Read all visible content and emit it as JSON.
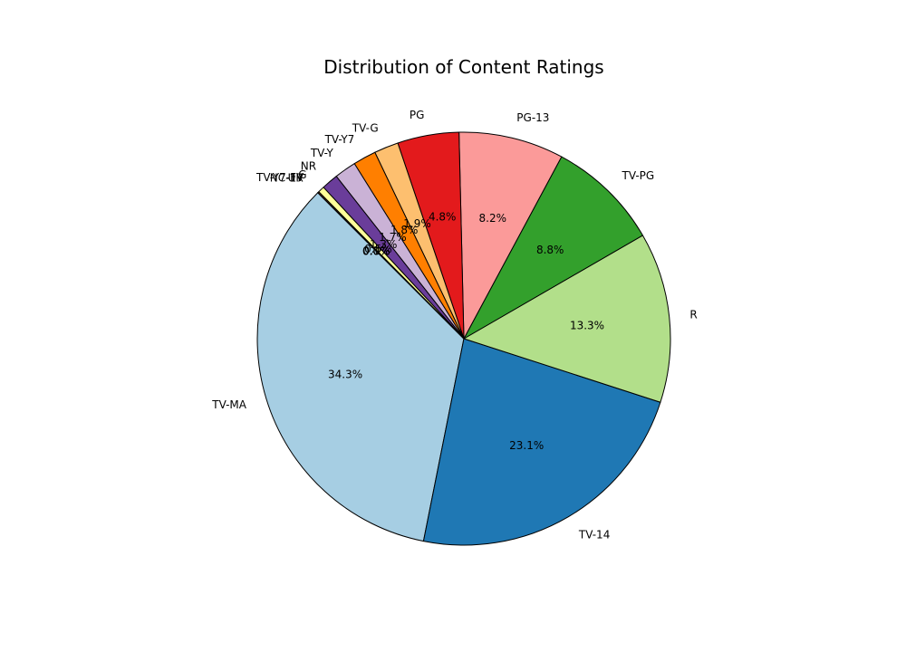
{
  "chart_data": {
    "type": "pie",
    "title": "Distribution of Content Ratings",
    "start_angle_deg": 135,
    "direction": "counterclockwise",
    "edge_color": "#000000",
    "slices": [
      {
        "label": "TV-MA",
        "value": 34.3,
        "pct_label": "34.3%",
        "color": "#a6cee3"
      },
      {
        "label": "TV-14",
        "value": 23.1,
        "pct_label": "23.1%",
        "color": "#1f78b4"
      },
      {
        "label": "R",
        "value": 13.3,
        "pct_label": "13.3%",
        "color": "#b2df8a"
      },
      {
        "label": "TV-PG",
        "value": 8.8,
        "pct_label": "8.8%",
        "color": "#33a02c"
      },
      {
        "label": "PG-13",
        "value": 8.2,
        "pct_label": "8.2%",
        "color": "#fb9a99"
      },
      {
        "label": "PG",
        "value": 4.8,
        "pct_label": "4.8%",
        "color": "#e31a1c"
      },
      {
        "label": "TV-G",
        "value": 1.9,
        "pct_label": "1.9%",
        "color": "#fdbf6f"
      },
      {
        "label": "TV-Y7",
        "value": 1.8,
        "pct_label": "1.8%",
        "color": "#ff7f00"
      },
      {
        "label": "TV-Y",
        "value": 1.7,
        "pct_label": "1.7%",
        "color": "#cab2d6"
      },
      {
        "label": "NR",
        "value": 1.3,
        "pct_label": "1.3%",
        "color": "#6a3d9a"
      },
      {
        "label": "G",
        "value": 0.5,
        "pct_label": "0.5%",
        "color": "#ffff99"
      },
      {
        "label": "TV-Y7-FV",
        "value": 0.1,
        "pct_label": "0.1%",
        "color": "#b15928"
      },
      {
        "label": "NC-17",
        "value": 0.0,
        "pct_label": "0.0%",
        "color": "#a6cee3"
      },
      {
        "label": "UR",
        "value": 0.0,
        "pct_label": "0.0%",
        "color": "#1f78b4"
      }
    ]
  }
}
